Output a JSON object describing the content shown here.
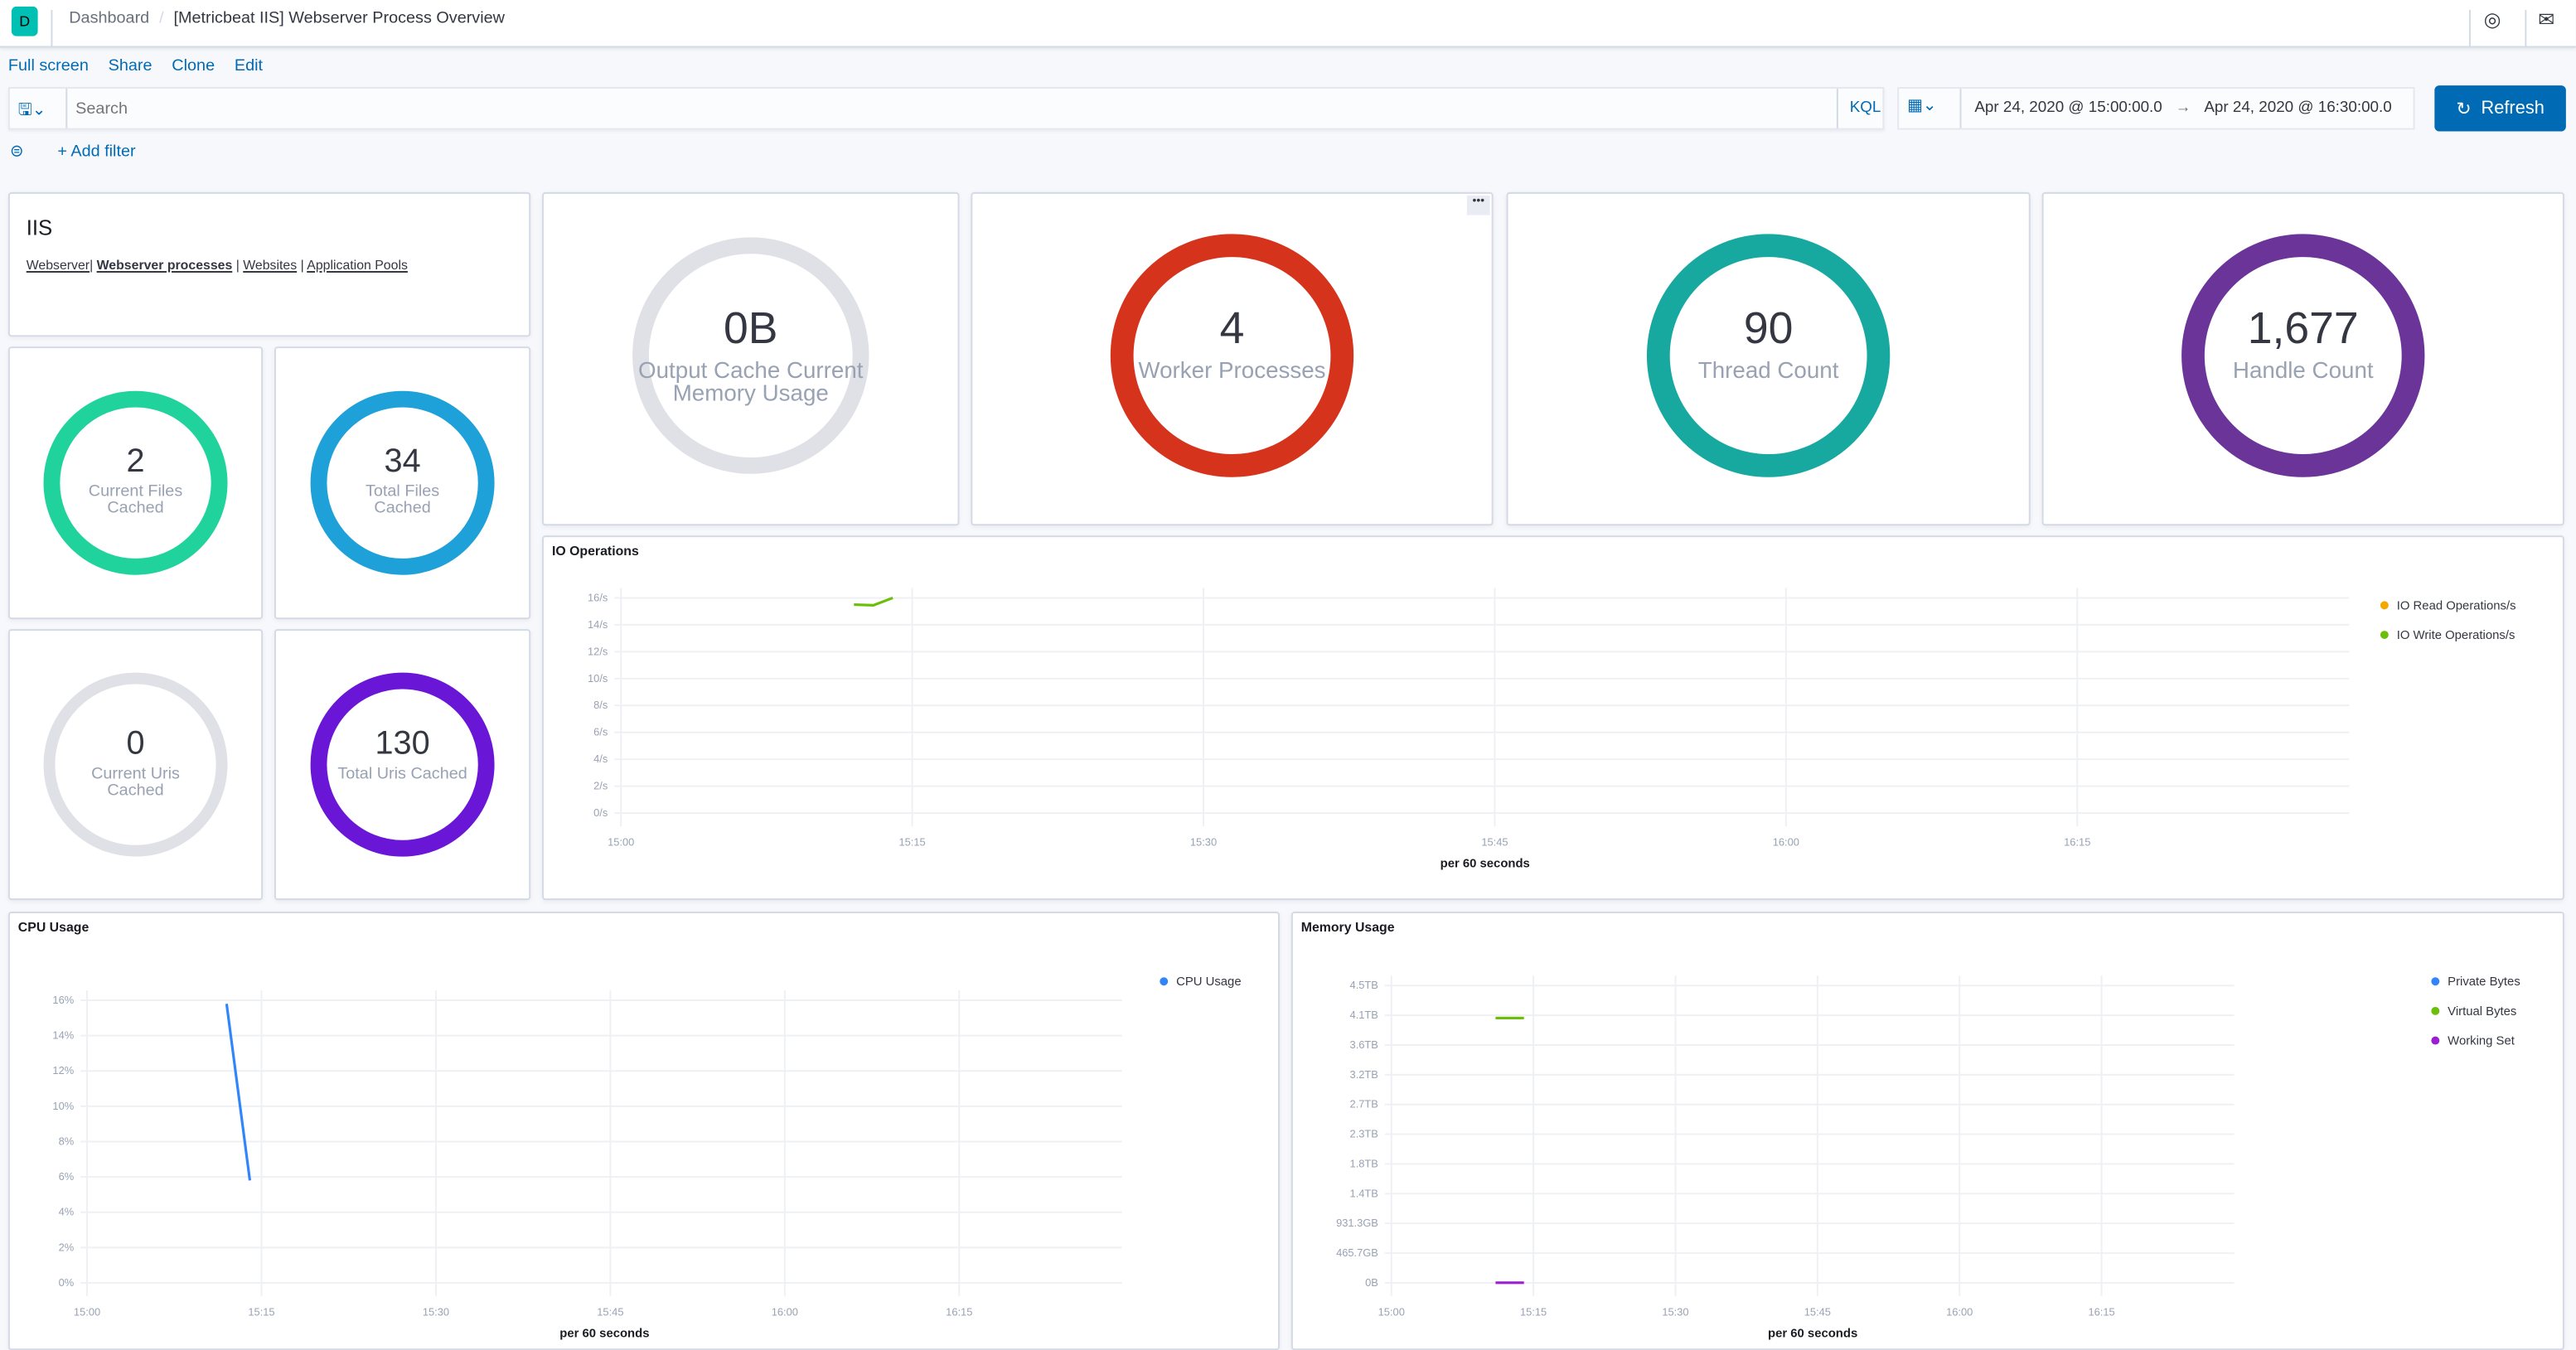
{
  "header": {
    "logo_letter": "D",
    "breadcrumbs": [
      "Dashboard",
      "[Metricbeat IIS] Webserver Process Overview"
    ],
    "icons": [
      "help-lifebuoy-icon",
      "mail-icon"
    ]
  },
  "actions": [
    "Full screen",
    "Share",
    "Clone",
    "Edit"
  ],
  "search": {
    "placeholder": "Search",
    "language": "KQL"
  },
  "time": {
    "start": "Apr 24, 2020 @ 15:00:00.0",
    "arrow": "→",
    "end": "Apr 24, 2020 @ 16:30:00.0",
    "refresh_label": "Refresh"
  },
  "filter": {
    "add_label": "+ Add filter"
  },
  "iis": {
    "title": "IIS",
    "links": [
      "Webserver",
      "Webserver processes",
      "Websites",
      "Application Pools"
    ],
    "active": "Webserver processes"
  },
  "gauges": {
    "output_cache": {
      "value": "0B",
      "label": "Output Cache Current Memory Usage",
      "color": "#e0e1e6"
    },
    "worker": {
      "value": "4",
      "label": "Worker Processes",
      "color": "#d6331d"
    },
    "thread": {
      "value": "90",
      "label": "Thread Count",
      "color": "#17a8a0"
    },
    "handle": {
      "value": "1,677",
      "label": "Handle Count",
      "color": "#6a3499"
    },
    "files_cached": {
      "value": "2",
      "label": "Current Files Cached",
      "color": "#20d39c"
    },
    "total_files": {
      "value": "34",
      "label": "Total Files Cached",
      "color": "#1ea0d8"
    },
    "uris_cached": {
      "value": "0",
      "label": "Current Uris Cached",
      "color": "#e0e1e6"
    },
    "total_uris": {
      "value": "130",
      "label": "Total Uris Cached",
      "color": "#6a16d6"
    }
  },
  "chart_data": [
    {
      "type": "line",
      "title": "IO Operations",
      "xlabel": "per 60 seconds",
      "x_ticks": [
        "15:00",
        "15:15",
        "15:30",
        "15:45",
        "16:00",
        "16:15"
      ],
      "y_ticks": [
        "0/s",
        "2/s",
        "4/s",
        "6/s",
        "8/s",
        "10/s",
        "12/s",
        "14/s",
        "16/s"
      ],
      "ylim": [
        0,
        16
      ],
      "xlim": [
        "15:00",
        "16:29"
      ],
      "grid": true,
      "legend": "right",
      "series": [
        {
          "name": "IO Read Operations/s",
          "color": "#f5a700",
          "points": []
        },
        {
          "name": "IO Write Operations/s",
          "color": "#54b399",
          "stroke": "#6bbf0a",
          "points": [
            [
              "15:12",
              15.5
            ],
            [
              "15:13",
              15.45
            ],
            [
              "15:14",
              16
            ]
          ]
        }
      ]
    },
    {
      "type": "line",
      "title": "CPU Usage",
      "xlabel": "per 60 seconds",
      "x_ticks": [
        "15:00",
        "15:15",
        "15:30",
        "15:45",
        "16:00",
        "16:15"
      ],
      "y_ticks": [
        "0%",
        "2%",
        "4%",
        "6%",
        "8%",
        "10%",
        "12%",
        "14%",
        "16%"
      ],
      "ylim": [
        0,
        16
      ],
      "xlim": [
        "15:00",
        "16:29"
      ],
      "grid": true,
      "legend": "right",
      "series": [
        {
          "name": "CPU Usage",
          "color": "#3185fc",
          "points": [
            [
              "15:12",
              15.8
            ],
            [
              "15:14",
              5.8
            ]
          ]
        }
      ]
    },
    {
      "type": "line",
      "title": "Memory Usage",
      "xlabel": "per 60 seconds",
      "x_ticks": [
        "15:00",
        "15:15",
        "15:30",
        "15:45",
        "16:00",
        "16:15"
      ],
      "y_ticks": [
        "0B",
        "465.7GB",
        "931.3GB",
        "1.4TB",
        "1.8TB",
        "2.3TB",
        "2.7TB",
        "3.2TB",
        "3.6TB",
        "4.1TB",
        "4.5TB"
      ],
      "y_unit": "TB",
      "ylim": [
        0,
        4.547
      ],
      "xlim": [
        "15:00",
        "16:29"
      ],
      "grid": true,
      "legend": "right",
      "series": [
        {
          "name": "Private Bytes",
          "color": "#3185fc",
          "points": []
        },
        {
          "name": "Virtual Bytes",
          "color": "#6bbf0a",
          "points": [
            [
              "15:11",
              4.05
            ],
            [
              "15:14",
              4.05
            ]
          ]
        },
        {
          "name": "Working Set",
          "color": "#9b1fd1",
          "points": [
            [
              "15:11",
              0.002
            ],
            [
              "15:14",
              0.002
            ]
          ]
        }
      ]
    }
  ]
}
